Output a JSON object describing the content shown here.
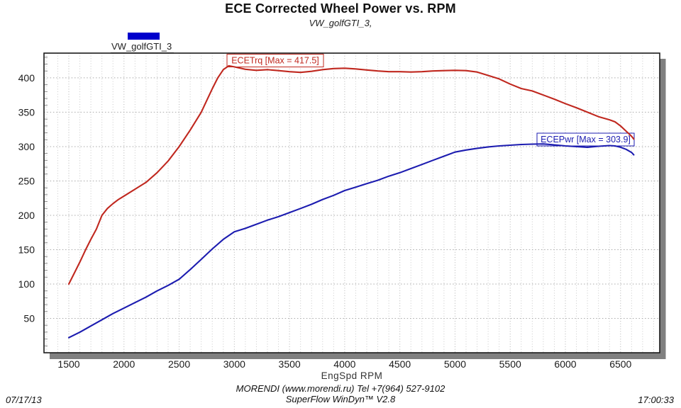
{
  "chart_data": {
    "type": "line",
    "title": "ECE Corrected Wheel Power vs. RPM",
    "subtitle": "VW_golfGTI_3,",
    "xlabel": "EngSpd  RPM",
    "x_ticks": [
      1500,
      2000,
      2500,
      3000,
      3500,
      4000,
      4500,
      5000,
      5500,
      6000,
      6500
    ],
    "y_ticks": [
      50,
      100,
      150,
      200,
      250,
      300,
      350,
      400
    ],
    "x_range": [
      1275,
      6855
    ],
    "y_range": [
      0,
      436
    ],
    "minor_x_step": 100,
    "grid": "dotted",
    "legend_position": "top-left",
    "series": [
      {
        "name": "ECETrq",
        "max": 417.5,
        "annotation": "ECETrq [Max = 417.5]",
        "color": "#c0281f",
        "points": [
          [
            1500,
            100
          ],
          [
            1550,
            116
          ],
          [
            1600,
            132
          ],
          [
            1650,
            149
          ],
          [
            1700,
            165
          ],
          [
            1750,
            180
          ],
          [
            1800,
            200
          ],
          [
            1850,
            210
          ],
          [
            1900,
            217
          ],
          [
            1950,
            223
          ],
          [
            2000,
            228
          ],
          [
            2100,
            238
          ],
          [
            2200,
            248
          ],
          [
            2300,
            262
          ],
          [
            2400,
            279
          ],
          [
            2500,
            300
          ],
          [
            2600,
            324
          ],
          [
            2700,
            350
          ],
          [
            2750,
            367
          ],
          [
            2800,
            384
          ],
          [
            2850,
            400
          ],
          [
            2900,
            412
          ],
          [
            2950,
            417.5
          ],
          [
            3000,
            416
          ],
          [
            3100,
            412.5
          ],
          [
            3200,
            411
          ],
          [
            3300,
            412
          ],
          [
            3400,
            410.5
          ],
          [
            3500,
            409
          ],
          [
            3600,
            408
          ],
          [
            3700,
            409.5
          ],
          [
            3800,
            412
          ],
          [
            3900,
            413.5
          ],
          [
            4000,
            414
          ],
          [
            4100,
            413
          ],
          [
            4200,
            411.5
          ],
          [
            4300,
            410
          ],
          [
            4400,
            409
          ],
          [
            4500,
            409
          ],
          [
            4600,
            408.5
          ],
          [
            4700,
            409
          ],
          [
            4800,
            410
          ],
          [
            4900,
            410.5
          ],
          [
            5000,
            411
          ],
          [
            5100,
            410.5
          ],
          [
            5200,
            408.5
          ],
          [
            5300,
            403.5
          ],
          [
            5400,
            398.5
          ],
          [
            5500,
            391
          ],
          [
            5600,
            384.5
          ],
          [
            5700,
            381
          ],
          [
            5800,
            375
          ],
          [
            5900,
            369
          ],
          [
            6000,
            362.5
          ],
          [
            6100,
            356.5
          ],
          [
            6200,
            350
          ],
          [
            6300,
            343.5
          ],
          [
            6400,
            339
          ],
          [
            6450,
            336
          ],
          [
            6500,
            330
          ],
          [
            6550,
            322.5
          ],
          [
            6600,
            315
          ],
          [
            6620,
            311
          ]
        ]
      },
      {
        "name": "ECEPwr",
        "max": 303.9,
        "annotation": "ECEPwr [Max = 303.9]",
        "color": "#1c1cb0",
        "points": [
          [
            1500,
            22
          ],
          [
            1600,
            30
          ],
          [
            1700,
            39
          ],
          [
            1800,
            48
          ],
          [
            1900,
            57
          ],
          [
            2000,
            65
          ],
          [
            2100,
            73
          ],
          [
            2200,
            81
          ],
          [
            2300,
            90
          ],
          [
            2400,
            98
          ],
          [
            2500,
            107
          ],
          [
            2600,
            121
          ],
          [
            2700,
            136
          ],
          [
            2800,
            151
          ],
          [
            2900,
            165
          ],
          [
            3000,
            176
          ],
          [
            3100,
            181
          ],
          [
            3200,
            187
          ],
          [
            3300,
            193
          ],
          [
            3400,
            198
          ],
          [
            3500,
            204
          ],
          [
            3600,
            210
          ],
          [
            3700,
            216
          ],
          [
            3800,
            223
          ],
          [
            3900,
            229
          ],
          [
            4000,
            236
          ],
          [
            4100,
            241
          ],
          [
            4200,
            246
          ],
          [
            4300,
            251
          ],
          [
            4400,
            257
          ],
          [
            4500,
            262
          ],
          [
            4600,
            268
          ],
          [
            4700,
            274
          ],
          [
            4800,
            280
          ],
          [
            4900,
            286
          ],
          [
            5000,
            292
          ],
          [
            5100,
            295
          ],
          [
            5200,
            297.5
          ],
          [
            5300,
            299.5
          ],
          [
            5400,
            301
          ],
          [
            5500,
            302
          ],
          [
            5600,
            303
          ],
          [
            5700,
            303.5
          ],
          [
            5800,
            303.9
          ],
          [
            5900,
            302.5
          ],
          [
            6000,
            301
          ],
          [
            6100,
            300
          ],
          [
            6200,
            299
          ],
          [
            6300,
            300.5
          ],
          [
            6400,
            301.5
          ],
          [
            6450,
            301
          ],
          [
            6500,
            299
          ],
          [
            6550,
            296
          ],
          [
            6600,
            291.5
          ],
          [
            6620,
            288
          ]
        ]
      }
    ]
  },
  "legend": {
    "label": "VW_golfGTI_3",
    "swatch_color": "#0000cc"
  },
  "footer": {
    "line1": "MORENDI (www.morendi.ru) Tel +7(964) 527-9102",
    "line2": "SuperFlow WinDyn™ V2.8",
    "date": "07/17/13",
    "time": "17:00:33"
  }
}
